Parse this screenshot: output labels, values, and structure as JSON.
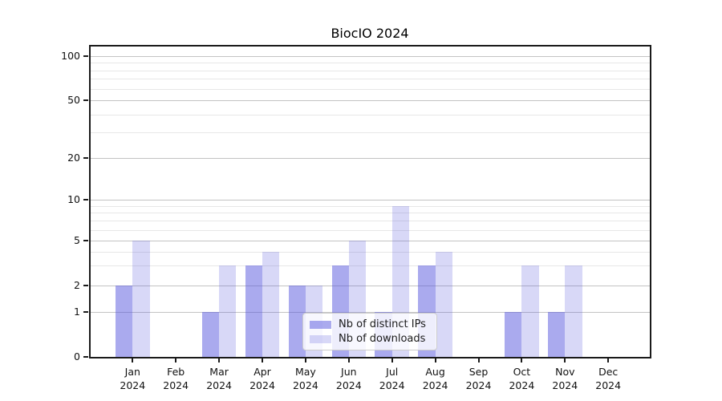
{
  "chart_data": {
    "type": "bar",
    "title": "BiocIO 2024",
    "xlabel": "",
    "ylabel": "",
    "year": "2024",
    "categories": [
      "Jan",
      "Feb",
      "Mar",
      "Apr",
      "May",
      "Jun",
      "Jul",
      "Aug",
      "Sep",
      "Oct",
      "Nov",
      "Dec"
    ],
    "series": [
      {
        "name": "Nb of distinct IPs",
        "color": "rgba(85,85,221,0.50)",
        "color_on_white": "#aaaaee",
        "values": [
          2,
          0,
          1,
          3,
          2,
          3,
          1,
          3,
          0,
          1,
          1,
          0
        ]
      },
      {
        "name": "Nb of downloads",
        "color": "rgba(85,85,221,0.23)",
        "color_on_white": "#d8d8f7",
        "values": [
          5,
          0,
          3,
          4,
          2,
          5,
          9,
          4,
          0,
          3,
          3,
          0
        ]
      }
    ],
    "y_axis": {
      "scale": "symlog",
      "major_ticks": [
        0,
        1,
        2,
        5,
        10,
        20,
        50,
        100
      ],
      "minor_gridline_values": [
        3,
        4,
        6,
        7,
        8,
        9,
        30,
        40,
        60,
        70,
        80,
        90
      ],
      "ylim": [
        0,
        114
      ]
    },
    "grid": "on",
    "legend_position": "lower center"
  },
  "colors": {
    "series_dark": "#aaaaee",
    "series_light": "#d8d8f7",
    "grid_major": "#c3c3c3",
    "grid_minor": "#e7e7e7",
    "spine": "#1a1a1a",
    "background": "#ffffff"
  }
}
